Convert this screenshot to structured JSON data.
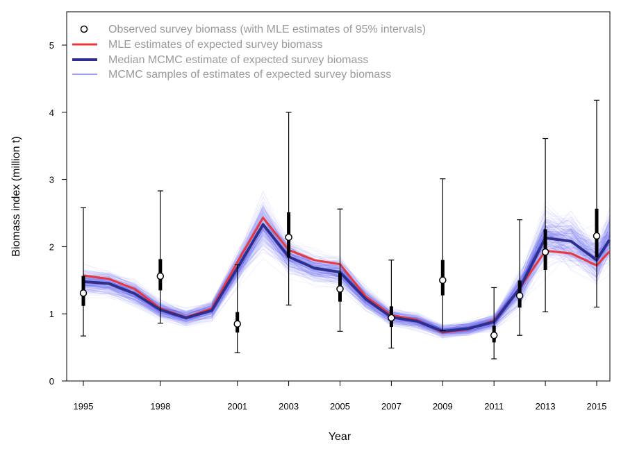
{
  "chart_data": {
    "type": "line",
    "xlabel": "Year",
    "ylabel": "Biomass index (million t)",
    "xlim": [
      1995,
      2015.5
    ],
    "ylim": [
      0,
      5.5
    ],
    "x_ticks": [
      "1995",
      "1998",
      "2001",
      "2003",
      "2005",
      "2007",
      "2009",
      "2011",
      "2013",
      "2015"
    ],
    "y_ticks": [
      "0",
      "1",
      "2",
      "3",
      "4",
      "5"
    ],
    "grid": false,
    "legend_position": "top-left",
    "legend": [
      "Observed survey biomass (with MLE estimates of 95% intervals)",
      "MLE estimates of expected survey biomass",
      "Median MCMC estimate of expected survey biomass",
      "MCMC samples of estimates of expected survey biomass"
    ],
    "years": [
      1995,
      1996,
      1997,
      1998,
      1999,
      2000,
      2001,
      2002,
      2003,
      2004,
      2005,
      2006,
      2007,
      2008,
      2009,
      2010,
      2011,
      2012,
      2013,
      2014,
      2015,
      2015.5
    ],
    "series": [
      {
        "name": "MLE estimates of expected survey biomass",
        "color": "#e8373d",
        "values": [
          1.57,
          1.52,
          1.37,
          1.08,
          0.95,
          1.08,
          1.77,
          2.43,
          1.95,
          1.8,
          1.74,
          1.26,
          0.98,
          0.91,
          0.72,
          0.77,
          0.9,
          1.38,
          1.94,
          1.9,
          1.72,
          1.93
        ]
      },
      {
        "name": "Median MCMC estimate of expected survey biomass",
        "color": "#2e2f8c",
        "values": [
          1.48,
          1.45,
          1.3,
          1.06,
          0.94,
          1.05,
          1.68,
          2.33,
          1.85,
          1.68,
          1.62,
          1.22,
          0.95,
          0.89,
          0.74,
          0.78,
          0.88,
          1.38,
          2.13,
          2.08,
          1.8,
          2.1
        ]
      }
    ],
    "observed": [
      {
        "year": 1995,
        "value": 1.31,
        "lower": 0.67,
        "upper": 2.58
      },
      {
        "year": 1998,
        "value": 1.56,
        "lower": 0.86,
        "upper": 2.83
      },
      {
        "year": 2001,
        "value": 0.85,
        "lower": 0.42,
        "upper": 1.73
      },
      {
        "year": 2003,
        "value": 2.14,
        "lower": 1.13,
        "upper": 4.0
      },
      {
        "year": 2005,
        "value": 1.37,
        "lower": 0.74,
        "upper": 2.56
      },
      {
        "year": 2007,
        "value": 0.94,
        "lower": 0.49,
        "upper": 1.8
      },
      {
        "year": 2009,
        "value": 1.5,
        "lower": 0.75,
        "upper": 3.01
      },
      {
        "year": 2011,
        "value": 0.68,
        "lower": 0.33,
        "upper": 1.39
      },
      {
        "year": 2012,
        "value": 1.27,
        "lower": 0.68,
        "upper": 2.4
      },
      {
        "year": 2013,
        "value": 1.92,
        "lower": 1.03,
        "upper": 3.61
      },
      {
        "year": 2015,
        "value": 2.16,
        "lower": 1.1,
        "upper": 4.18
      }
    ],
    "colors": {
      "mcmc_samples": "#5b5bf0",
      "observed_fill": "#ffffff",
      "interval": "#000000"
    }
  }
}
